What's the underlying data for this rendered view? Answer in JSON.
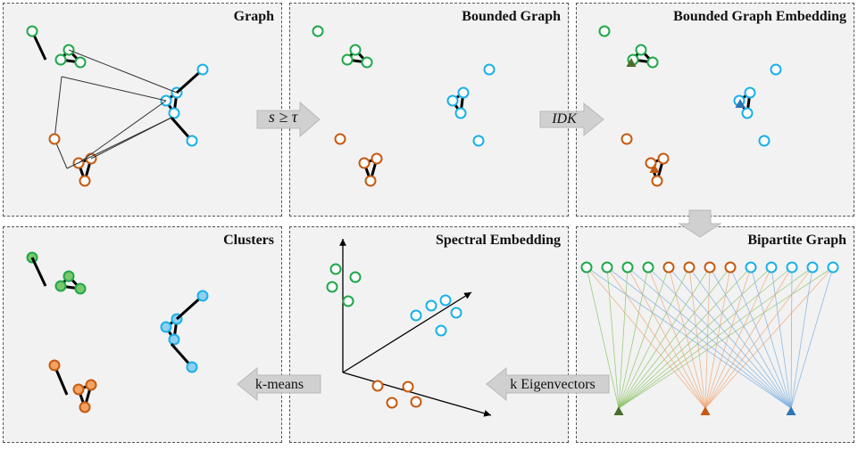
{
  "panels": {
    "graph": "Graph",
    "bounded_graph": "Bounded Graph",
    "bounded_embedding": "Bounded Graph Embedding",
    "clusters": "Clusters",
    "spectral": "Spectral Embedding",
    "bipartite": "Bipartite Graph"
  },
  "arrows": {
    "threshold": "s ≥ τ",
    "idk": "IDK",
    "kmeans": "k-means",
    "eigen": "k Eigenvectors"
  },
  "colors": {
    "green": "#1fa84a",
    "orange": "#c55a11",
    "blue": "#1ab0e8",
    "green_fill": "#7bc86c",
    "orange_fill": "#f4a261",
    "blue_fill": "#8fd0f0",
    "triangle_green": "#4a6e2a",
    "triangle_orange": "#c55a11",
    "triangle_blue": "#2e75b6"
  }
}
